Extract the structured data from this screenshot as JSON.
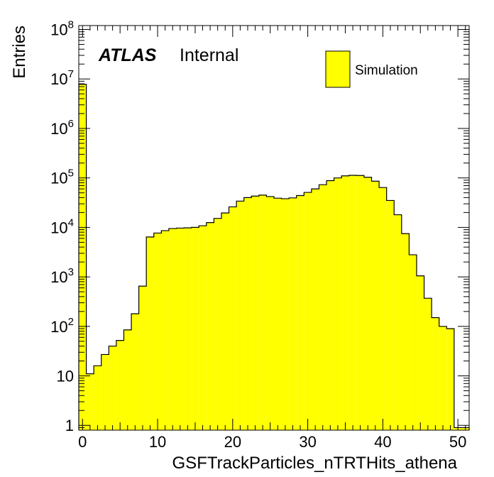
{
  "chart_data": {
    "type": "bar",
    "xlabel": "GSFTrackParticles_nTRTHits_athena",
    "ylabel": "Entries",
    "x_range": [
      -0.5,
      51.5
    ],
    "y_scale": "log",
    "ylim": [
      0.8,
      120000000
    ],
    "x_ticks": [
      0,
      10,
      20,
      30,
      40,
      50
    ],
    "y_ticks": [
      {
        "value": 1,
        "label": "1",
        "sup": ""
      },
      {
        "value": 10,
        "label": "10",
        "sup": ""
      },
      {
        "value": 100,
        "label": "10",
        "sup": "2"
      },
      {
        "value": 1000,
        "label": "10",
        "sup": "3"
      },
      {
        "value": 10000,
        "label": "10",
        "sup": "4"
      },
      {
        "value": 100000,
        "label": "10",
        "sup": "5"
      },
      {
        "value": 1000000,
        "label": "10",
        "sup": "6"
      },
      {
        "value": 10000000,
        "label": "10",
        "sup": "7"
      },
      {
        "value": 100000000,
        "label": "10",
        "sup": "8"
      }
    ],
    "series": [
      {
        "name": "Simulation",
        "color": "#ffff00",
        "bins": [
          0,
          1,
          2,
          3,
          4,
          5,
          6,
          7,
          8,
          9,
          10,
          11,
          12,
          13,
          14,
          15,
          16,
          17,
          18,
          19,
          20,
          21,
          22,
          23,
          24,
          25,
          26,
          27,
          28,
          29,
          30,
          31,
          32,
          33,
          34,
          35,
          36,
          37,
          38,
          39,
          40,
          41,
          42,
          43,
          44,
          45,
          46,
          47,
          48,
          49,
          50,
          51
        ],
        "values": [
          7800000,
          11,
          16,
          27,
          40,
          52,
          85,
          180,
          650,
          6400,
          7700,
          8600,
          9500,
          9700,
          9800,
          10000,
          10800,
          12500,
          15200,
          19600,
          26000,
          34000,
          40000,
          43000,
          45000,
          42000,
          39000,
          38000,
          39500,
          44000,
          51000,
          60000,
          73000,
          88000,
          100000,
          110000,
          113000,
          112000,
          103000,
          86000,
          64000,
          35000,
          18000,
          7500,
          2800,
          1050,
          370,
          150,
          100,
          90,
          0.9,
          0.9
        ]
      }
    ],
    "annotations": {
      "atlas": "ATLAS",
      "status": "Internal"
    },
    "legend": {
      "placement": "top-right",
      "label": "Simulation"
    }
  }
}
